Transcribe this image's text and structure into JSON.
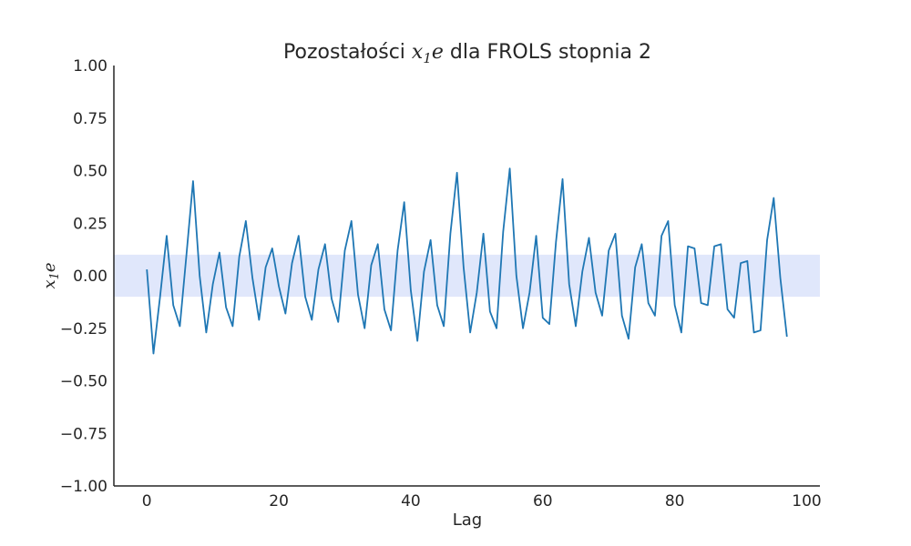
{
  "chart_data": {
    "type": "line",
    "title": {
      "prefix": "Pozostałości ",
      "math_main": "x",
      "math_sub": "1",
      "math_tail": "e",
      "suffix": " dla FROLS stopnia 2"
    },
    "xlabel": "Lag",
    "ylabel": {
      "main": "x",
      "sub": "1",
      "tail": "e"
    },
    "xlim": [
      -5,
      102
    ],
    "ylim": [
      -1.0,
      1.0
    ],
    "xticks": [
      0,
      20,
      40,
      60,
      80,
      100
    ],
    "yticks": [
      -1.0,
      -0.75,
      -0.5,
      -0.25,
      0.0,
      0.25,
      0.5,
      0.75,
      1.0
    ],
    "xtick_labels": [
      "0",
      "20",
      "40",
      "60",
      "80",
      "100"
    ],
    "ytick_labels": [
      "−1.00",
      "−0.75",
      "−0.50",
      "−0.25",
      "0.00",
      "0.25",
      "0.50",
      "0.75",
      "1.00"
    ],
    "confidence_band": {
      "lower": -0.1,
      "upper": 0.1,
      "color": "#e0e7fb"
    },
    "grid": false,
    "series": [
      {
        "color": "#1f77b4",
        "x": [
          0,
          1,
          2,
          3,
          4,
          5,
          6,
          7,
          8,
          9,
          10,
          11,
          12,
          13,
          14,
          15,
          16,
          17,
          18,
          19,
          20,
          21,
          22,
          23,
          24,
          25,
          26,
          27,
          28,
          29,
          30,
          31,
          32,
          33,
          34,
          35,
          36,
          37,
          38,
          39,
          40,
          41,
          42,
          43,
          44,
          45,
          46,
          47,
          48,
          49,
          50,
          51,
          52,
          53,
          54,
          55,
          56,
          57,
          58,
          59,
          60,
          61,
          62,
          63,
          64,
          65,
          66,
          67,
          68,
          69,
          70,
          71,
          72,
          73,
          74,
          75,
          76,
          77,
          78,
          79,
          80,
          81,
          82,
          83,
          84,
          85,
          86,
          87,
          88,
          89,
          90,
          91,
          92,
          93,
          94,
          95,
          96,
          97
        ],
        "y": [
          0.03,
          -0.37,
          -0.1,
          0.19,
          -0.14,
          -0.24,
          0.1,
          0.45,
          0.0,
          -0.27,
          -0.04,
          0.11,
          -0.15,
          -0.24,
          0.09,
          0.26,
          -0.01,
          -0.21,
          0.04,
          0.13,
          -0.05,
          -0.18,
          0.06,
          0.19,
          -0.1,
          -0.21,
          0.03,
          0.15,
          -0.11,
          -0.22,
          0.12,
          0.26,
          -0.09,
          -0.25,
          0.05,
          0.15,
          -0.16,
          -0.26,
          0.12,
          0.35,
          -0.07,
          -0.31,
          0.02,
          0.17,
          -0.14,
          -0.24,
          0.2,
          0.49,
          0.04,
          -0.27,
          -0.08,
          0.2,
          -0.17,
          -0.25,
          0.21,
          0.51,
          0.0,
          -0.25,
          -0.08,
          0.19,
          -0.2,
          -0.23,
          0.16,
          0.46,
          -0.04,
          -0.24,
          0.02,
          0.18,
          -0.08,
          -0.19,
          0.12,
          0.2,
          -0.19,
          -0.3,
          0.04,
          0.15,
          -0.13,
          -0.19,
          0.19,
          0.26,
          -0.14,
          -0.27,
          0.14,
          0.13,
          -0.13,
          -0.14,
          0.14,
          0.15,
          -0.16,
          -0.2,
          0.06,
          0.07,
          -0.27,
          -0.26,
          0.17,
          0.37,
          -0.01,
          -0.29
        ]
      }
    ]
  }
}
